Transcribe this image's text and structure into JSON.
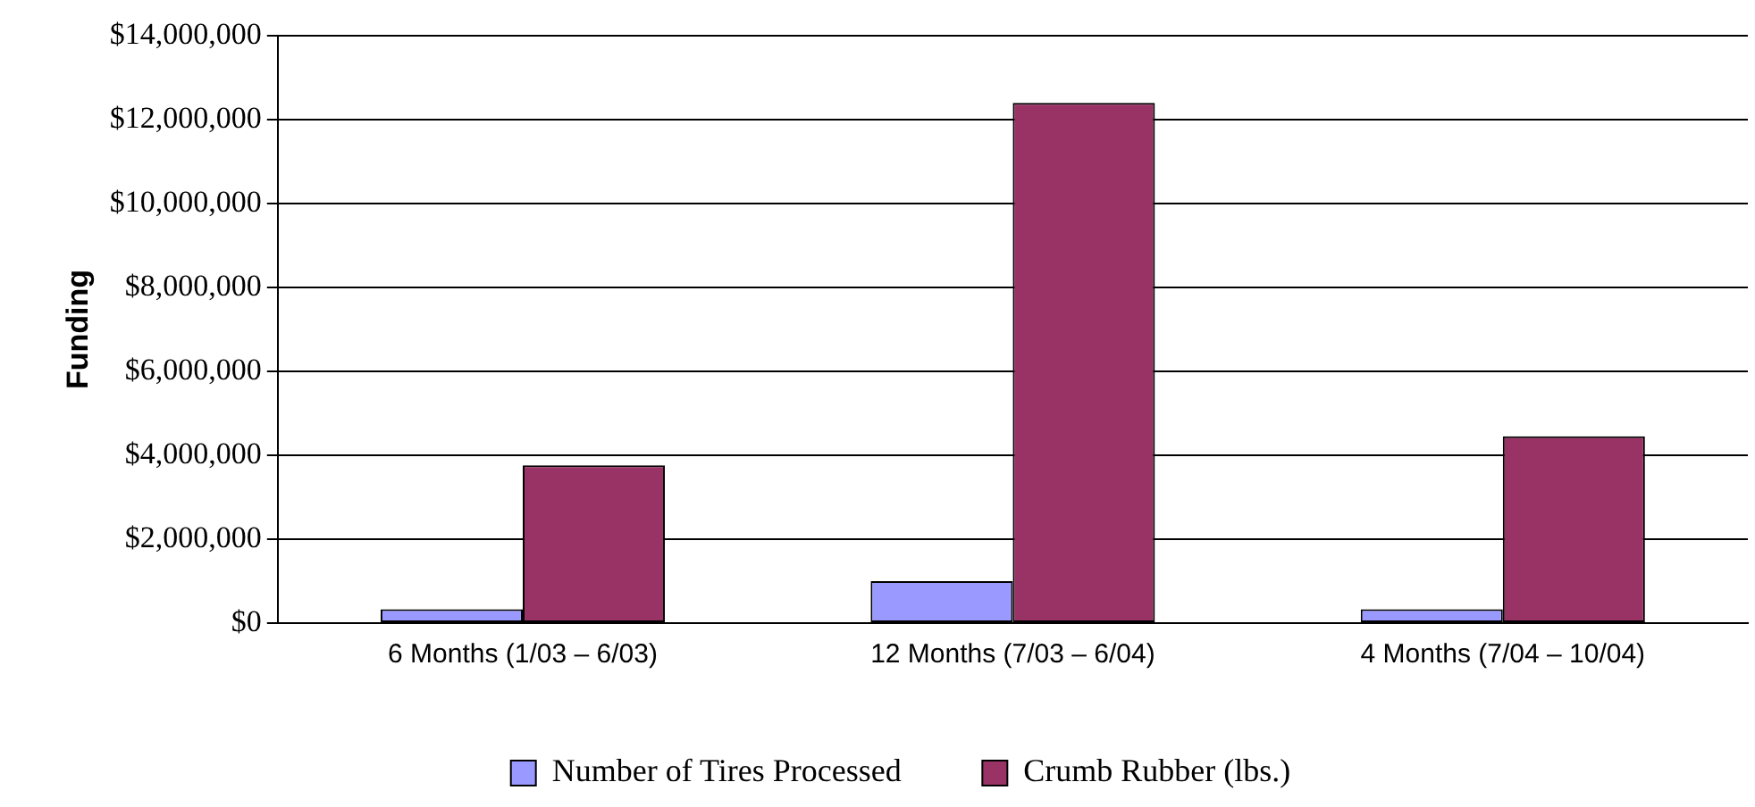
{
  "chart_data": {
    "type": "bar",
    "ylabel": "Funding",
    "categories": [
      "6 Months (1/03 – 6/03)",
      "12 Months (7/03 – 6/04)",
      "4 Months (7/04 – 10/04)"
    ],
    "series": [
      {
        "name": "Number of Tires Processed",
        "color": "#9999ff",
        "values": [
          330000,
          1000000,
          330000
        ]
      },
      {
        "name": "Crumb Rubber (lbs.)",
        "color": "#993366",
        "values": [
          3760000,
          12400000,
          4450000
        ]
      }
    ],
    "ylim": [
      0,
      14000000
    ],
    "yticks": [
      {
        "value": 0,
        "label": "$0"
      },
      {
        "value": 2000000,
        "label": "$2,000,000"
      },
      {
        "value": 4000000,
        "label": "$4,000,000"
      },
      {
        "value": 6000000,
        "label": "$6,000,000"
      },
      {
        "value": 8000000,
        "label": "$8,000,000"
      },
      {
        "value": 10000000,
        "label": "$10,000,000"
      },
      {
        "value": 12000000,
        "label": "$12,000,000"
      },
      {
        "value": 14000000,
        "label": "$14,000,000"
      }
    ],
    "grid": "y",
    "legend": "bottom"
  }
}
